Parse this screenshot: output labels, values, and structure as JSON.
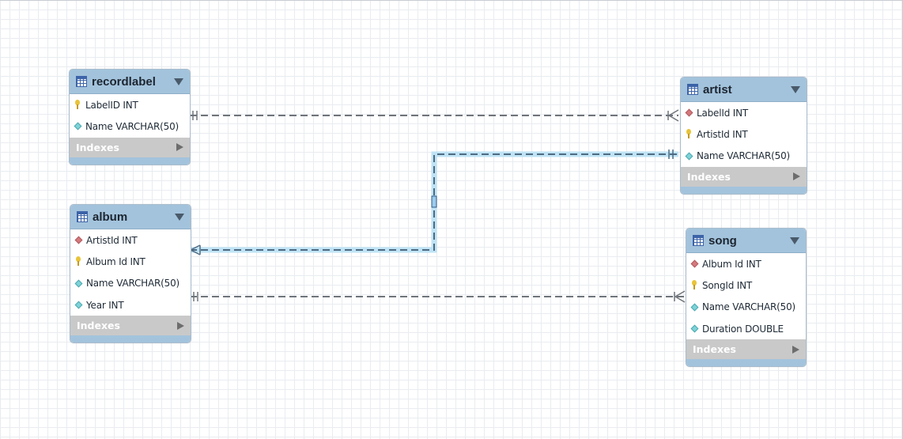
{
  "entities": {
    "recordlabel": {
      "title": "recordlabel",
      "columns": [
        {
          "name": "LabelID INT",
          "kind": "pk",
          "icon": "key-icon"
        },
        {
          "name": "Name VARCHAR(50)",
          "kind": "at",
          "icon": "diamond-icon"
        }
      ],
      "indexes": "Indexes"
    },
    "artist": {
      "title": "artist",
      "columns": [
        {
          "name": "LabelId INT",
          "kind": "fk",
          "icon": "diamond-icon"
        },
        {
          "name": "ArtistId INT",
          "kind": "pk",
          "icon": "key-icon"
        },
        {
          "name": "Name VARCHAR(50)",
          "kind": "at",
          "icon": "diamond-icon"
        }
      ],
      "indexes": "Indexes"
    },
    "album": {
      "title": "album",
      "columns": [
        {
          "name": "ArtistId INT",
          "kind": "fk",
          "icon": "diamond-icon"
        },
        {
          "name": "Album Id INT",
          "kind": "pk",
          "icon": "key-icon"
        },
        {
          "name": "Name VARCHAR(50)",
          "kind": "at",
          "icon": "diamond-icon"
        },
        {
          "name": "Year INT",
          "kind": "at",
          "icon": "diamond-icon"
        }
      ],
      "indexes": "Indexes"
    },
    "song": {
      "title": "song",
      "columns": [
        {
          "name": "Album Id INT",
          "kind": "fk",
          "icon": "diamond-icon"
        },
        {
          "name": "SongId INT",
          "kind": "pk",
          "icon": "key-icon"
        },
        {
          "name": "Name VARCHAR(50)",
          "kind": "at",
          "icon": "diamond-icon"
        },
        {
          "name": "Duration DOUBLE",
          "kind": "at",
          "icon": "diamond-icon"
        }
      ],
      "indexes": "Indexes"
    }
  },
  "relationships": [
    {
      "from": "recordlabel",
      "to": "artist",
      "cardinality": "one-to-many",
      "selected": false
    },
    {
      "from": "artist",
      "to": "album",
      "cardinality": "one-to-many",
      "selected": true
    },
    {
      "from": "album",
      "to": "song",
      "cardinality": "one-to-many",
      "selected": false
    }
  ],
  "colors": {
    "header": "#a3c3dc",
    "indexes_bar": "#c9c9c9",
    "relationship_line": "#6f747a",
    "selected_relationship_line": "#4e6a82",
    "selection_glow": "#bfe3f5"
  }
}
